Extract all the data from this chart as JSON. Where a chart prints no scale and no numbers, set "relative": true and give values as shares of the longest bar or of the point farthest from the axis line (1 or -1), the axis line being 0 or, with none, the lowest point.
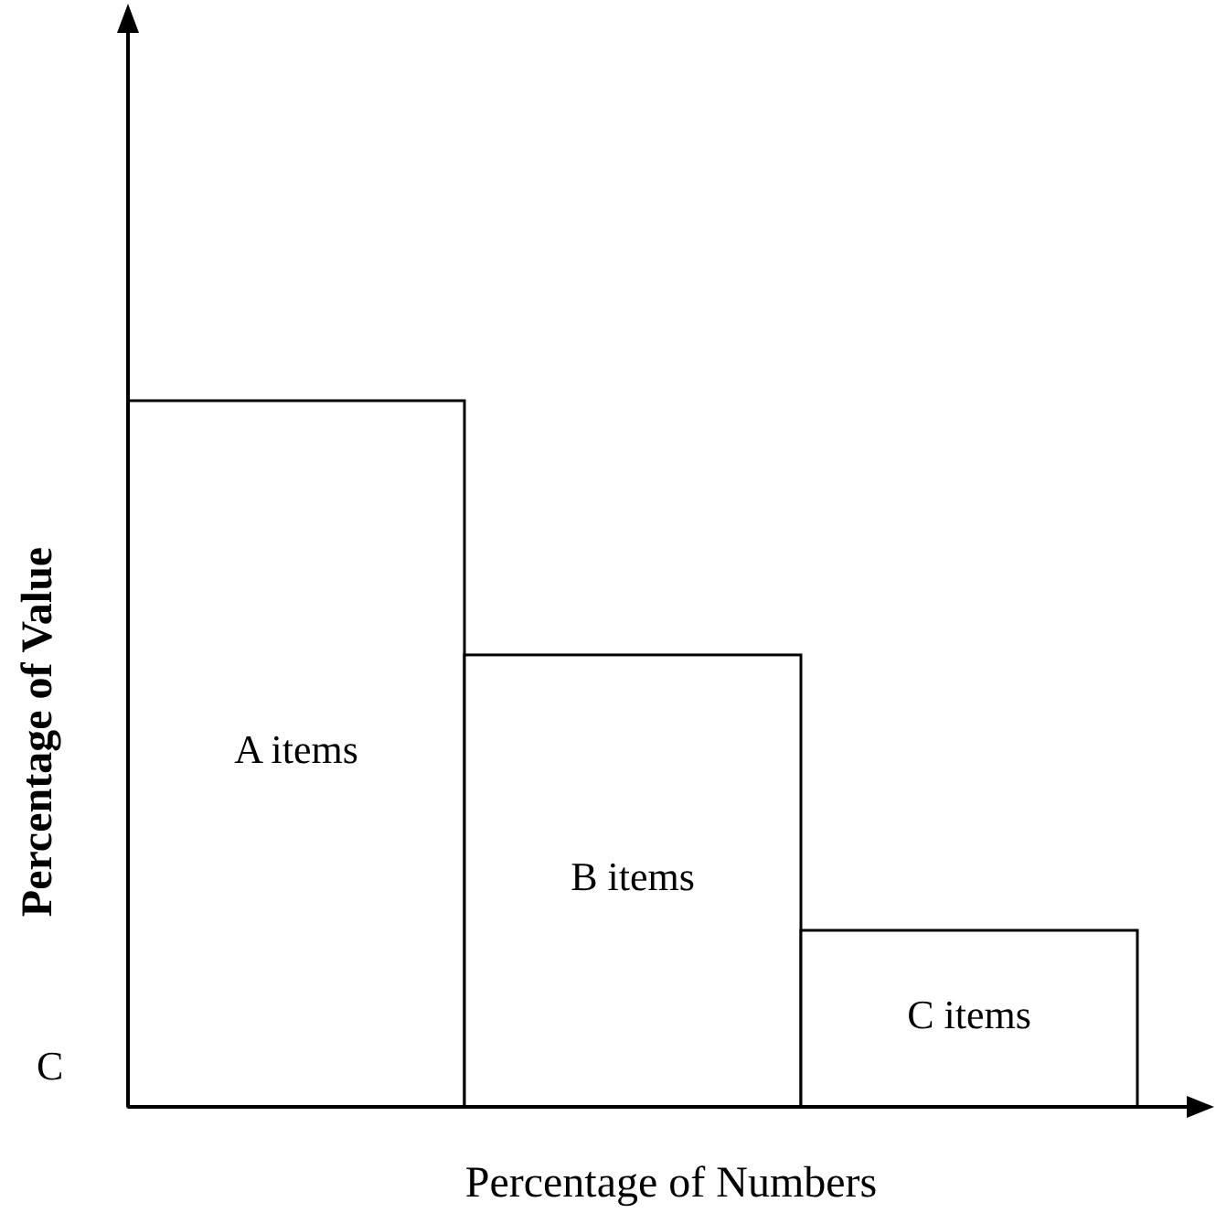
{
  "chart_data": {
    "type": "bar",
    "relative": true,
    "xlabel": "Percentage of Numbers",
    "ylabel": "Percentage of Value",
    "categories": [
      "A items",
      "B items",
      "C items"
    ],
    "values": [
      1,
      0.64,
      0.25
    ],
    "color": "#ffffff",
    "annotations": [
      "C"
    ]
  }
}
